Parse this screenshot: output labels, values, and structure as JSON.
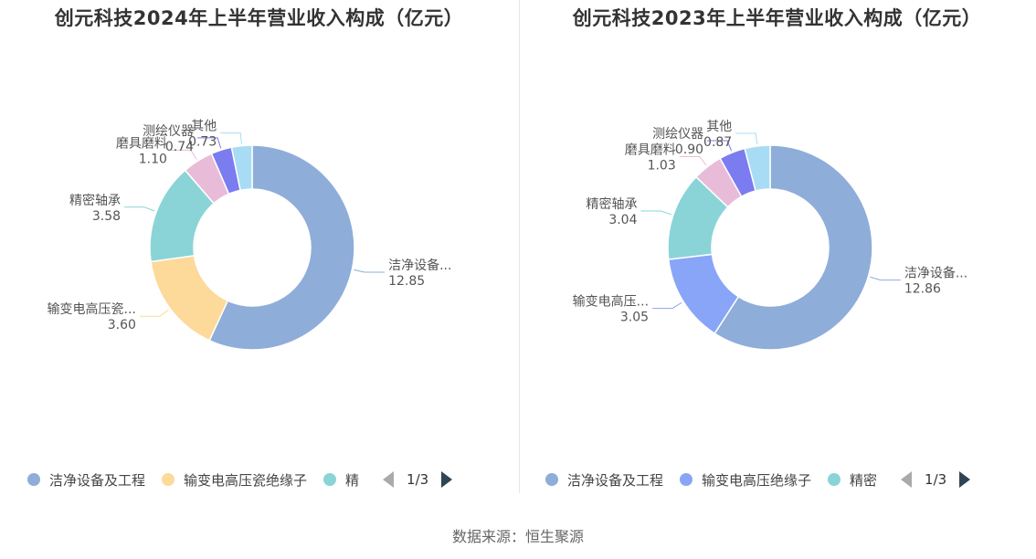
{
  "chart_data": [
    {
      "type": "pie",
      "title": "创元科技2024年上半年营业收入构成（亿元）",
      "slices": [
        {
          "name": "洁净设备及工程",
          "label": "洁净设备...",
          "value": 12.85,
          "value_text": "12.85",
          "color": "#8fadd9"
        },
        {
          "name": "输变电高压瓷绝缘子",
          "label": "输变电高压瓷...",
          "value": 3.6,
          "value_text": "3.60",
          "color": "#fdd99a"
        },
        {
          "name": "精密轴承",
          "label": "精密轴承",
          "value": 3.58,
          "value_text": "3.58",
          "color": "#8ad4d8"
        },
        {
          "name": "磨具磨料",
          "label": "磨具磨料",
          "value": 1.1,
          "value_text": "1.10",
          "color": "#e8bcd8"
        },
        {
          "name": "测绘仪器",
          "label": "测绘仪器",
          "value": 0.74,
          "value_text": "0.74",
          "color": "#7b7cf0"
        },
        {
          "name": "其他",
          "label": "其他",
          "value": 0.73,
          "value_text": "0.73",
          "color": "#a8dcf4"
        }
      ],
      "legend": {
        "items": [
          {
            "label": "洁净设备及工程",
            "color": "#8fadd9"
          },
          {
            "label": "输变电高压瓷绝缘子",
            "color": "#fdd99a"
          },
          {
            "label": "精",
            "color": "#8ad4d8"
          }
        ],
        "page": "1/3",
        "placement": "bottom"
      }
    },
    {
      "type": "pie",
      "title": "创元科技2023年上半年营业收入构成（亿元）",
      "slices": [
        {
          "name": "洁净设备及工程",
          "label": "洁净设备...",
          "value": 12.86,
          "value_text": "12.86",
          "color": "#8fadd9"
        },
        {
          "name": "输变电高压绝缘子",
          "label": "输变电高压...",
          "value": 3.05,
          "value_text": "3.05",
          "color": "#89a5f7"
        },
        {
          "name": "精密轴承",
          "label": "精密轴承",
          "value": 3.04,
          "value_text": "3.04",
          "color": "#8ad4d8"
        },
        {
          "name": "磨具磨料",
          "label": "磨具磨料",
          "value": 1.03,
          "value_text": "1.03",
          "color": "#e8bcd8"
        },
        {
          "name": "测绘仪器",
          "label": "测绘仪器",
          "value": 0.9,
          "value_text": "0.90",
          "color": "#7b7cf0"
        },
        {
          "name": "其他",
          "label": "其他",
          "value": 0.87,
          "value_text": "0.87",
          "color": "#a8dcf4"
        }
      ],
      "legend": {
        "items": [
          {
            "label": "洁净设备及工程",
            "color": "#8fadd9"
          },
          {
            "label": "输变电高压绝缘子",
            "color": "#89a5f7"
          },
          {
            "label": "精密",
            "color": "#8ad4d8"
          }
        ],
        "page": "1/3",
        "placement": "bottom"
      }
    }
  ],
  "source": "数据来源：恒生聚源"
}
